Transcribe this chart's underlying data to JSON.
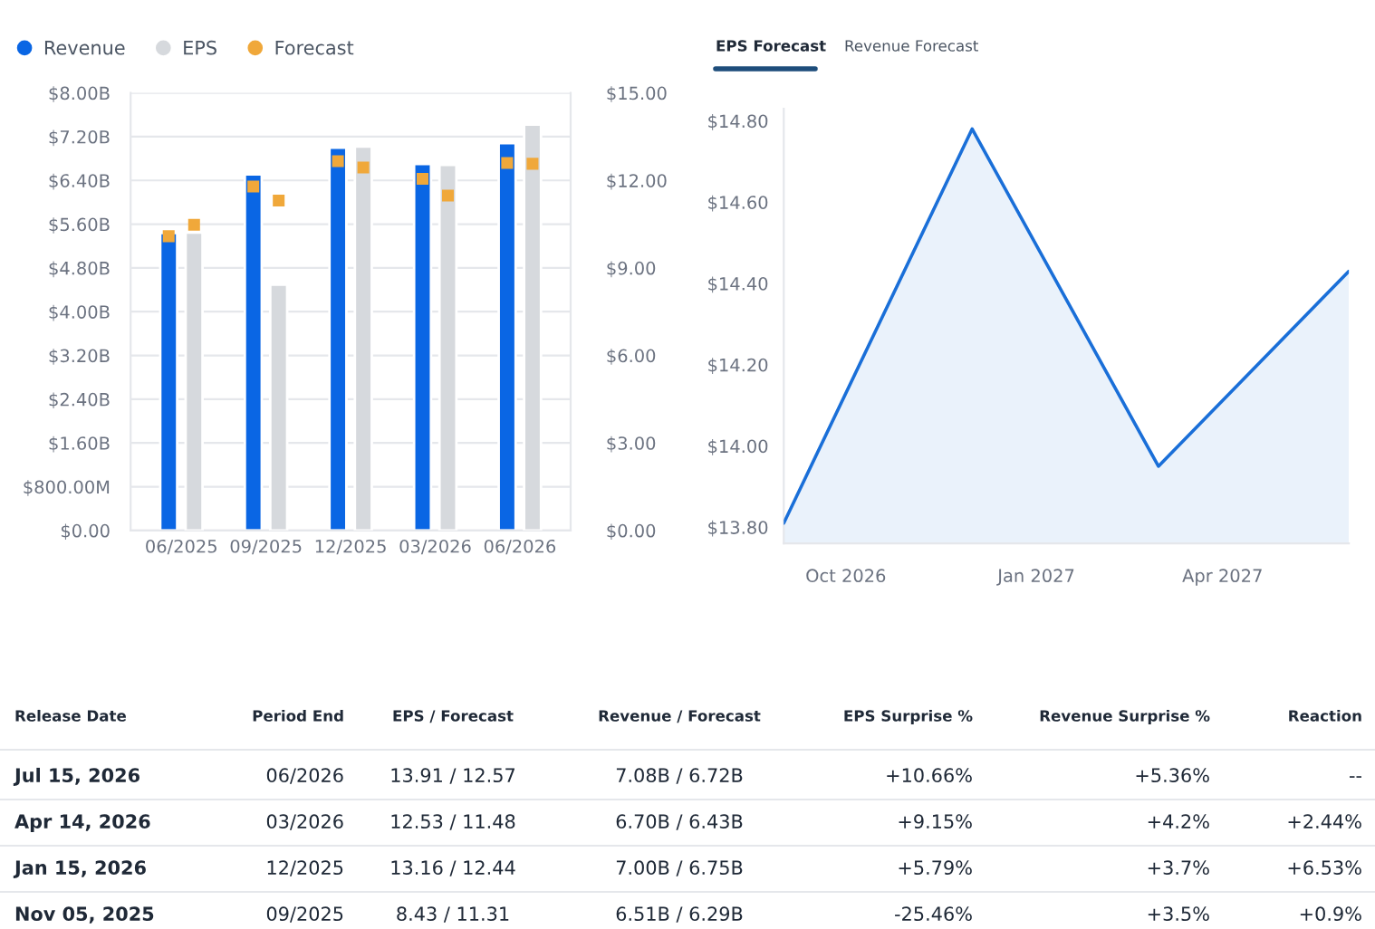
{
  "chart_data": [
    {
      "type": "bar",
      "categories": [
        "06/2025",
        "09/2025",
        "12/2025",
        "03/2026",
        "06/2026"
      ],
      "series": [
        {
          "name": "Revenue",
          "type": "bar",
          "axis": "y",
          "color": "#0a66e4",
          "values": [
            5440000000,
            6510000000,
            7000000000,
            6700000000,
            7080000000
          ]
        },
        {
          "name": "EPS",
          "type": "bar",
          "axis": "y2",
          "color": "#d6d9dd",
          "values": [
            10.21,
            8.43,
            13.16,
            12.53,
            13.91
          ]
        },
        {
          "name": "Forecast",
          "type": "scatter",
          "axis": "y",
          "color": "#f0a83a",
          "values": [
            5380000000,
            6290000000,
            6750000000,
            6430000000,
            6720000000
          ]
        },
        {
          "type": "scatter",
          "axis": "y2",
          "color": "#f0a83a",
          "values": [
            10.48,
            11.31,
            12.44,
            11.48,
            12.57
          ]
        }
      ],
      "marker": "square",
      "ylim": [
        0,
        8000000000
      ],
      "yticks": [
        {
          "value": 0,
          "label": "$0.00"
        },
        {
          "value": 800000000,
          "label": "$800.00M"
        },
        {
          "value": 1600000000,
          "label": "$1.60B"
        },
        {
          "value": 2400000000,
          "label": "$2.40B"
        },
        {
          "value": 3200000000,
          "label": "$3.20B"
        },
        {
          "value": 4000000000,
          "label": "$4.00B"
        },
        {
          "value": 4800000000,
          "label": "$4.80B"
        },
        {
          "value": 5600000000,
          "label": "$5.60B"
        },
        {
          "value": 6400000000,
          "label": "$6.40B"
        },
        {
          "value": 7200000000,
          "label": "$7.20B"
        },
        {
          "value": 8000000000,
          "label": "$8.00B"
        }
      ],
      "y2lim": [
        0,
        15
      ],
      "y2ticks": [
        {
          "value": 0,
          "label": "$0.00"
        },
        {
          "value": 3,
          "label": "$3.00"
        },
        {
          "value": 6,
          "label": "$6.00"
        },
        {
          "value": 9,
          "label": "$9.00"
        },
        {
          "value": 12,
          "label": "$12.00"
        },
        {
          "value": 15,
          "label": "$15.00"
        }
      ],
      "grid": "y",
      "legend": "top left"
    },
    {
      "type": "area",
      "title": "EPS Forecast",
      "annotations": [
        "Revenue Forecast"
      ],
      "x": [
        "2026-09-01",
        "2026-12-01",
        "2027-03-01",
        "2027-06-01"
      ],
      "series": [
        {
          "color": "#1a6fd8",
          "values": [
            13.81,
            14.78,
            13.95,
            14.43
          ]
        }
      ],
      "xlim": [
        "2026-09-01",
        "2027-06-01"
      ],
      "xticks": [
        {
          "value": "2026-10-01",
          "label": "Oct 2026"
        },
        {
          "value": "2027-01-01",
          "label": "Jan 2027"
        },
        {
          "value": "2027-04-01",
          "label": "Apr 2027"
        }
      ],
      "ylim": [
        13.76,
        14.83
      ],
      "yticks": [
        {
          "value": 13.8,
          "label": "$13.80"
        },
        {
          "value": 14.0,
          "label": "$14.00"
        },
        {
          "value": 14.2,
          "label": "$14.20"
        },
        {
          "value": 14.4,
          "label": "$14.40"
        },
        {
          "value": 14.6,
          "label": "$14.60"
        },
        {
          "value": 14.8,
          "label": "$14.80"
        }
      ]
    },
    {
      "type": "other",
      "categories": [
        "Release Date",
        "Period End",
        "EPS / Forecast",
        "Revenue / Forecast",
        "EPS Surprise %",
        "Revenue Surprise %",
        "Reaction"
      ],
      "annotations": [
        "Jul 15, 2026",
        "06/2026",
        "13.91 / 12.57",
        "7.08B / 6.72B",
        "+10.66%",
        "+5.36%",
        "--",
        "Apr 14, 2026",
        "03/2026",
        "12.53 / 11.48",
        "6.70B / 6.43B",
        "+9.15%",
        "+4.2%",
        "+2.44%",
        "Jan 15, 2026",
        "12/2025",
        "13.16 / 12.44",
        "7.00B / 6.75B",
        "+5.79%",
        "+3.7%",
        "+6.53%",
        "Nov 05, 2025",
        "09/2025",
        "8.43 / 11.31",
        "6.51B / 6.29B",
        "-25.46%",
        "+3.5%",
        "+0.9%"
      ]
    }
  ]
}
